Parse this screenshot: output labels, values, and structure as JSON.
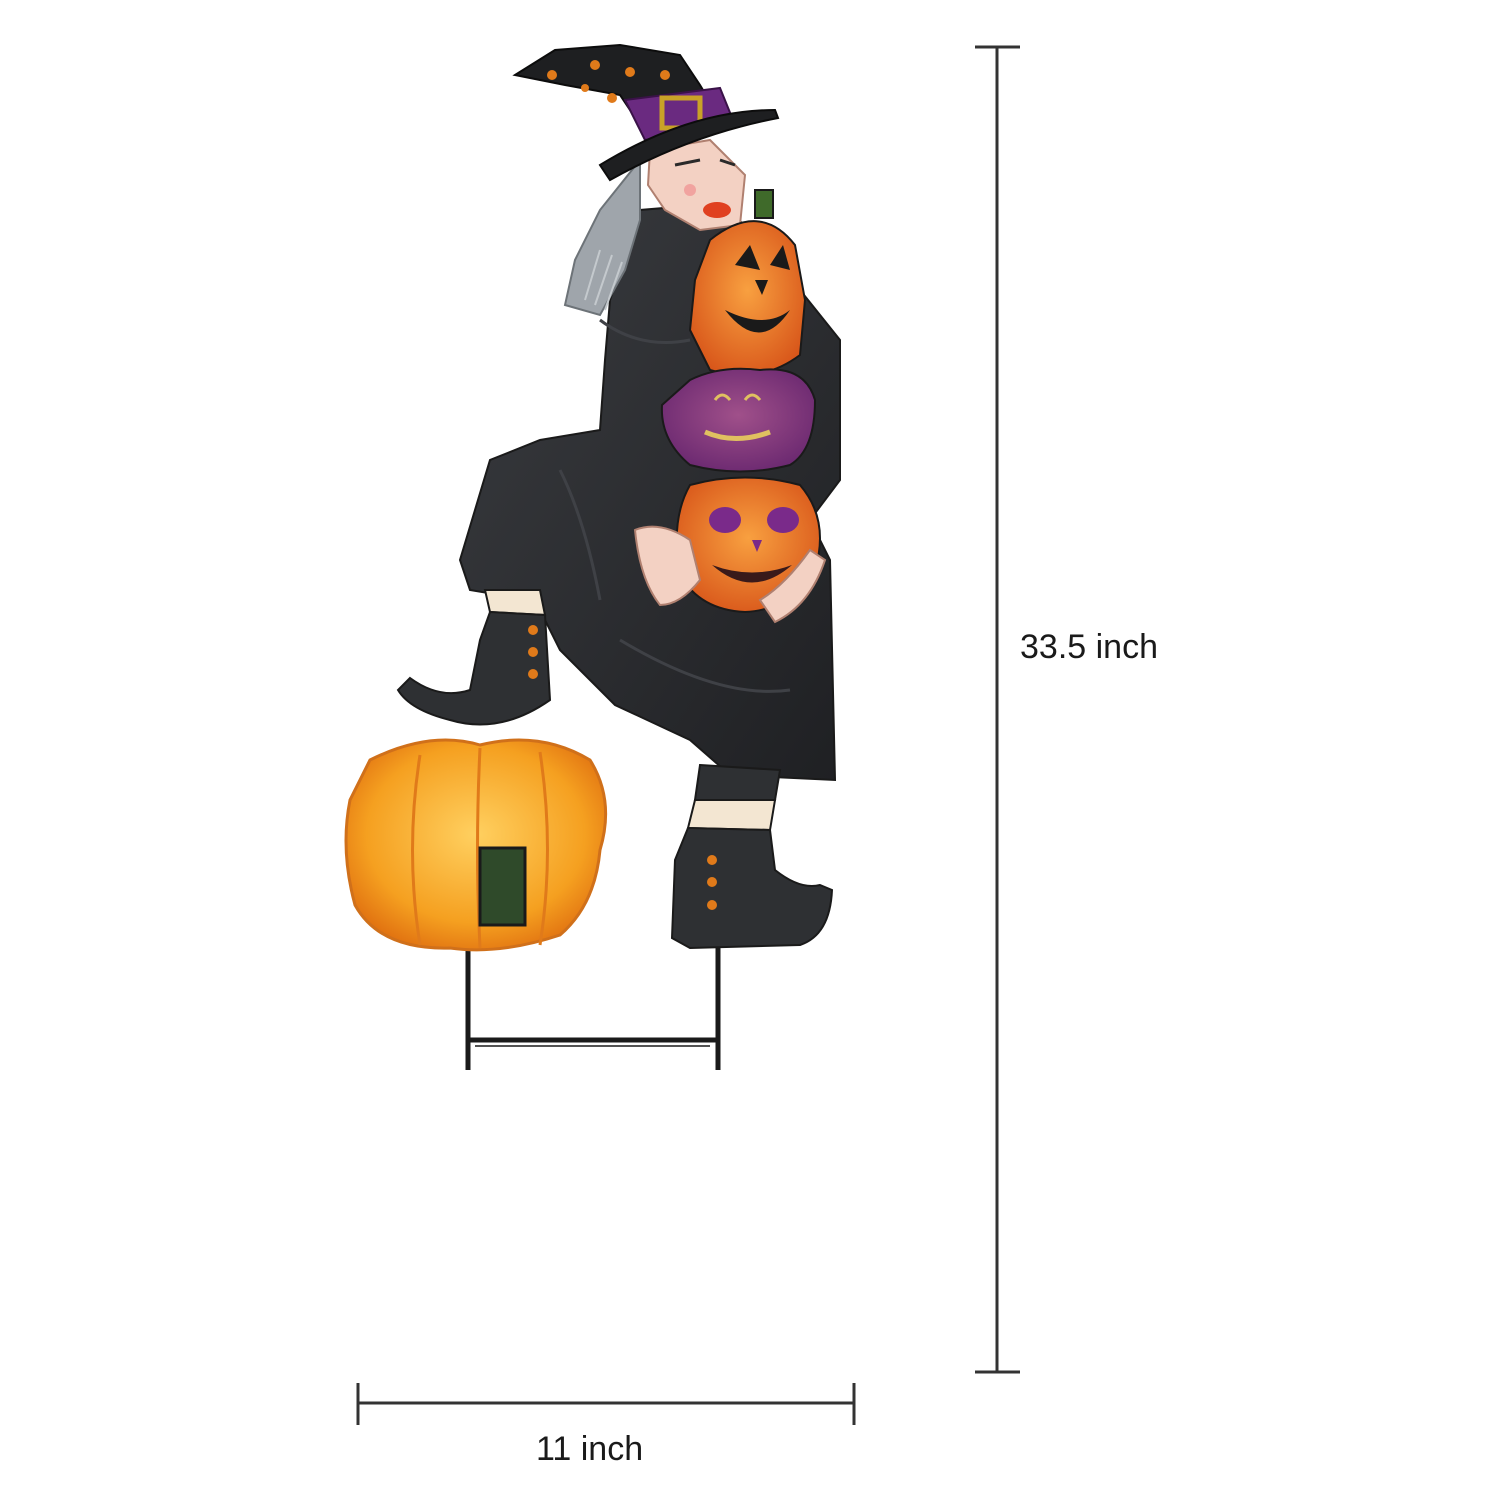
{
  "dimensions": {
    "height_label": "33.5 inch",
    "width_label": "11 inch"
  },
  "colors": {
    "background": "#ffffff",
    "robe": "#2e3033",
    "pumpkin_orange": "#f5a020",
    "purple_glitter": "#7a2a8a",
    "dimension_line": "#333333"
  }
}
